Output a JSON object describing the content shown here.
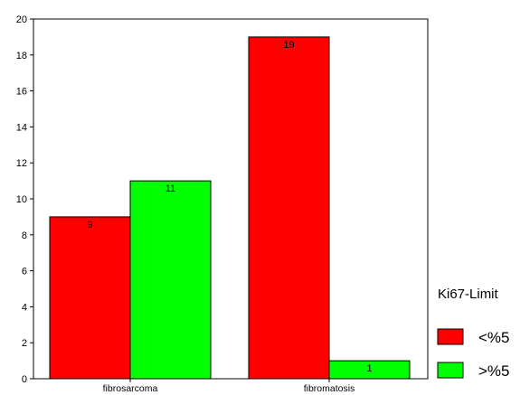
{
  "chart_data": {
    "type": "bar",
    "categories": [
      "fibrosarcoma",
      "fibromatosis"
    ],
    "series": [
      {
        "name": "<%5",
        "values": [
          9,
          19
        ],
        "color": "#ff0000"
      },
      {
        "name": ">%5",
        "values": [
          11,
          1
        ],
        "color": "#00ff00"
      }
    ],
    "data_labels": true,
    "ylim": [
      0,
      20
    ],
    "yticks": [
      0,
      2,
      4,
      6,
      8,
      10,
      12,
      14,
      16,
      18,
      20
    ],
    "legend": {
      "title": "Ki67-Limit",
      "placement": "bottom-right, outside plot"
    },
    "grid": false,
    "xlabel": "",
    "ylabel": "",
    "title": ""
  }
}
